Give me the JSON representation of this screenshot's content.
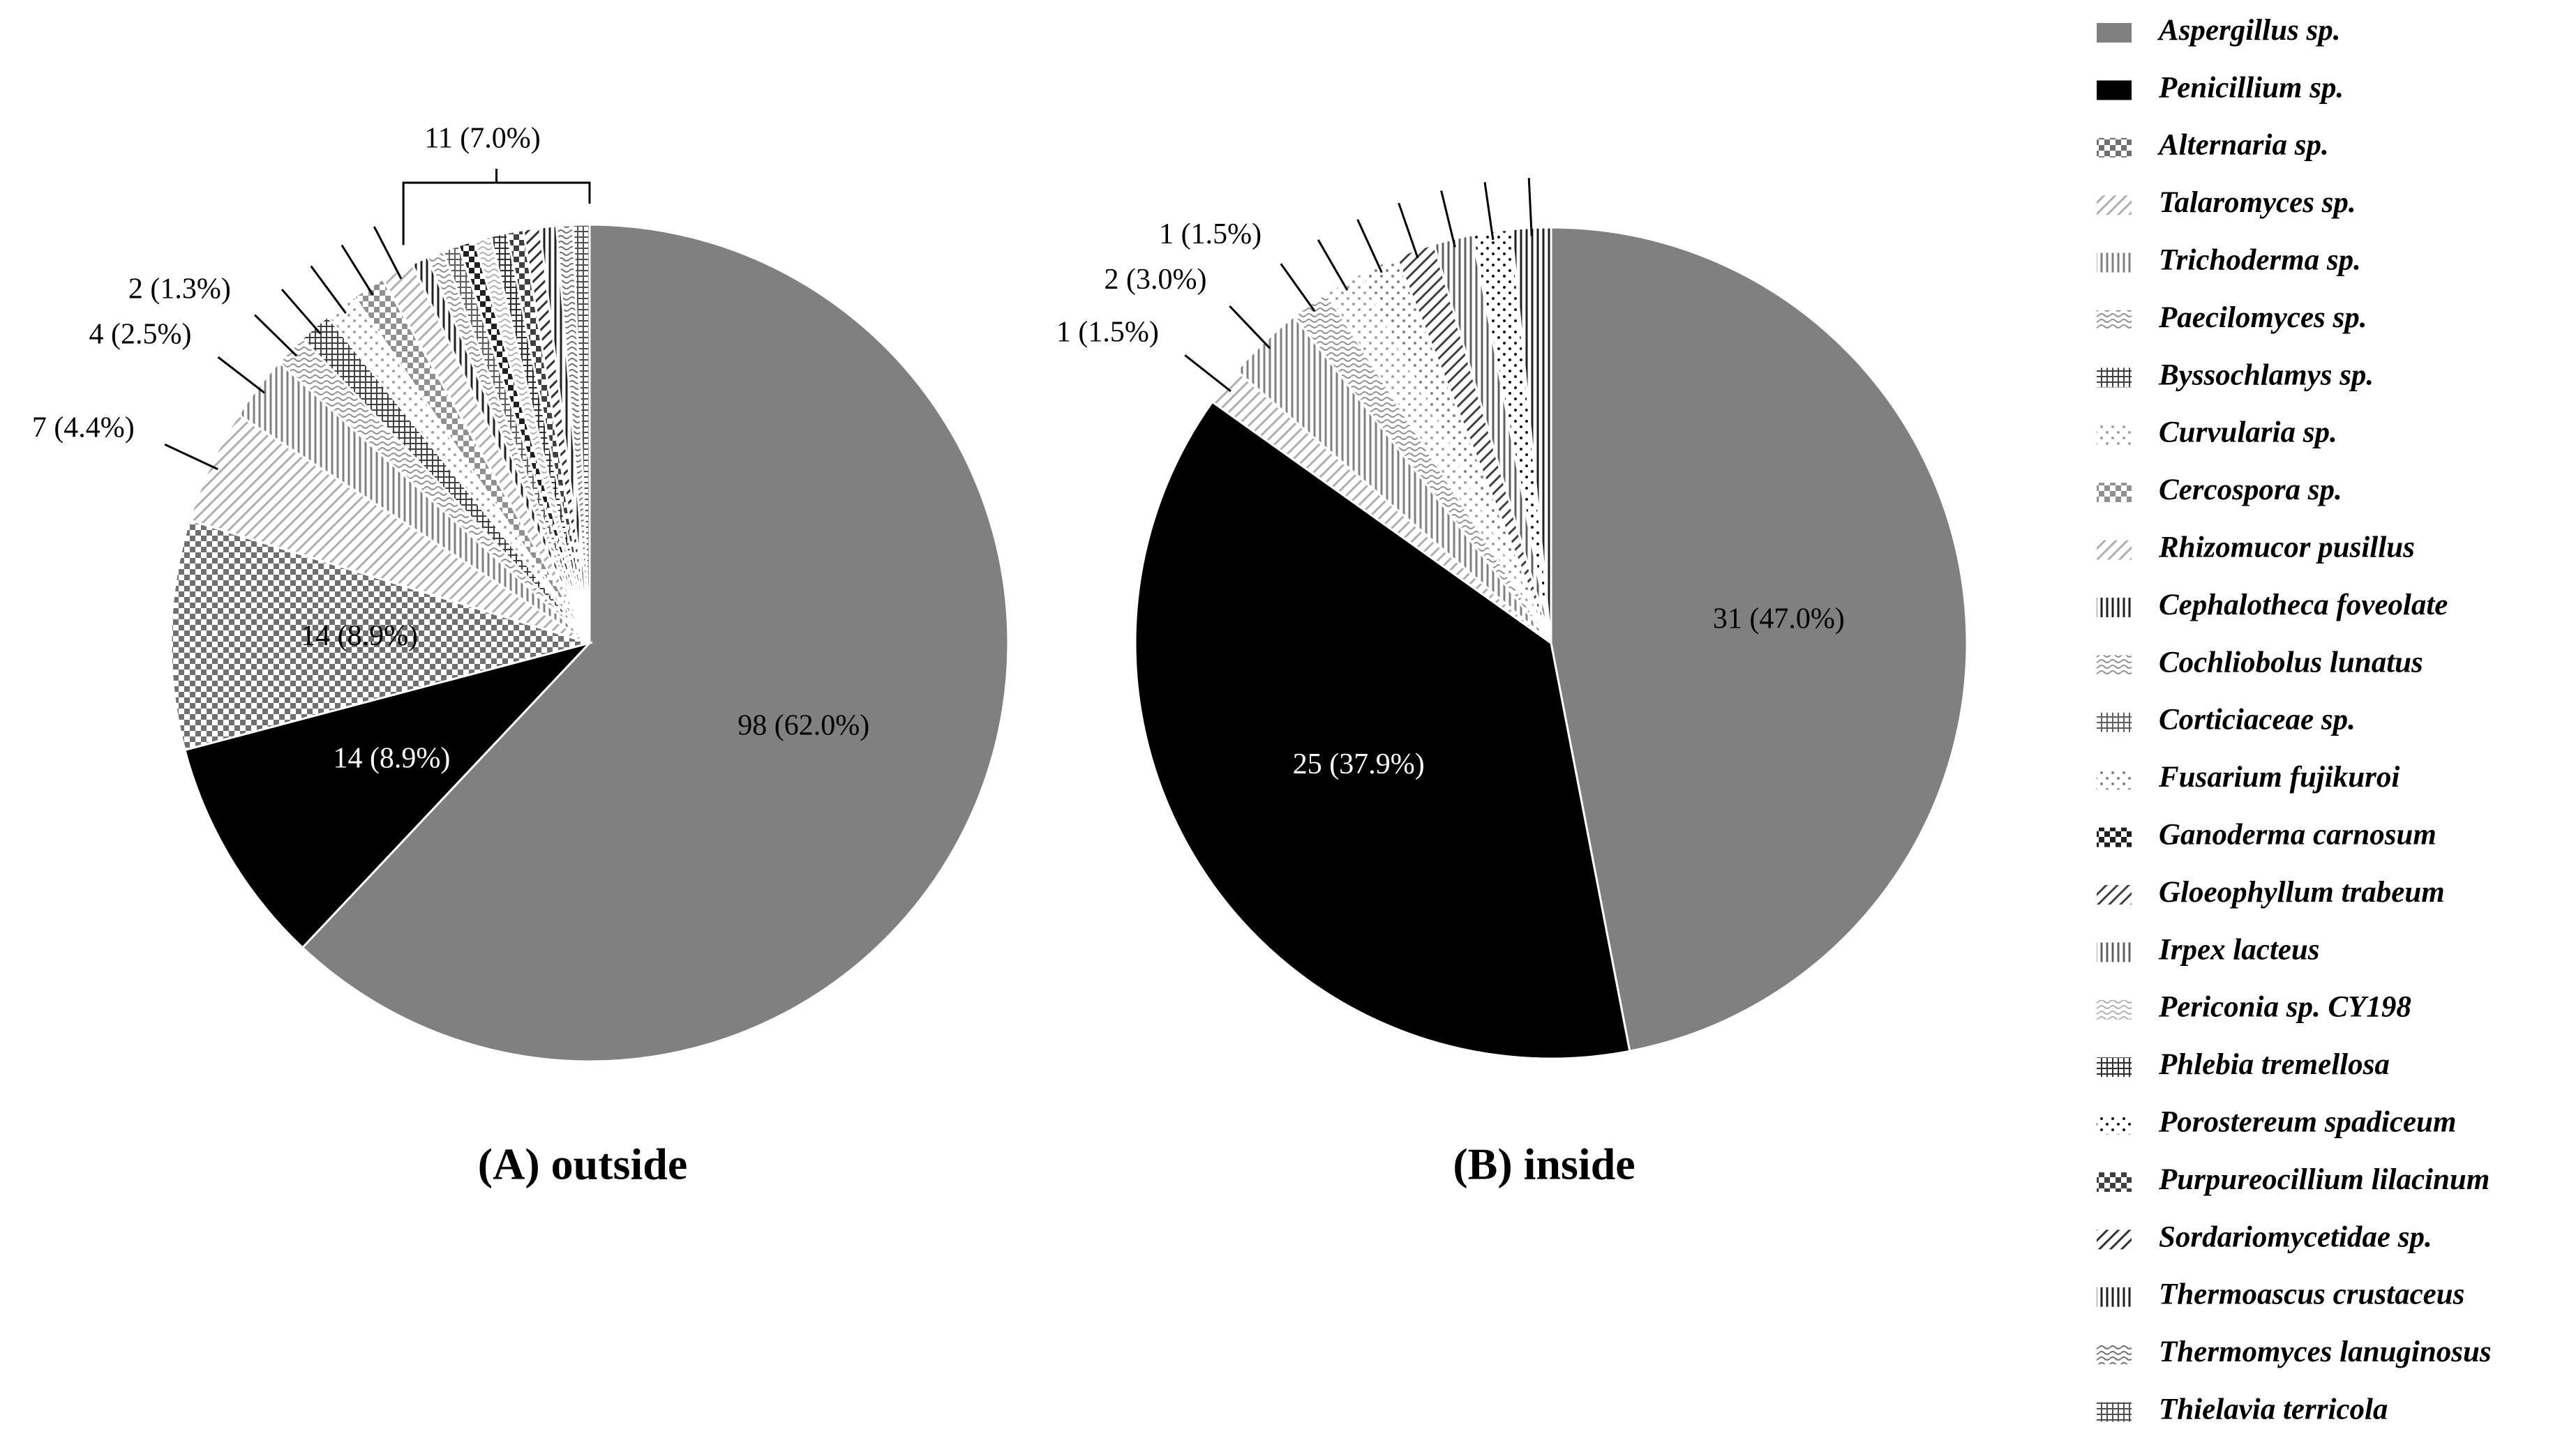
{
  "chart_data": [
    {
      "type": "pie",
      "title": "(A) outside",
      "values": [
        98,
        14,
        14,
        7,
        4,
        2,
        2,
        2,
        2,
        2,
        1,
        1,
        1,
        0,
        1,
        0,
        0,
        1,
        1,
        0,
        1,
        1,
        1,
        1,
        1
      ],
      "value_labels": [
        "98 (62.0%)",
        "14 (8.9%)",
        "14 (8.9%)",
        "7 (4.4%)",
        "4 (2.5%)",
        "2 (1.3%)",
        null,
        null,
        null,
        null,
        null,
        null,
        null,
        null,
        null,
        null,
        null,
        null,
        null,
        null,
        null,
        null,
        null,
        null,
        null
      ],
      "annotations": [
        "11 (7.0%)"
      ]
    },
    {
      "type": "pie",
      "title": "(B) inside",
      "values": [
        31,
        25,
        0,
        1,
        2,
        1,
        0,
        1,
        0,
        0,
        0,
        0,
        0,
        1,
        0,
        1,
        1,
        0,
        0,
        1,
        0,
        0,
        1,
        0,
        0
      ],
      "value_labels": [
        "31 (47.0%)",
        "25 (37.9%)",
        null,
        "1 (1.5%)",
        "2 (3.0%)",
        "1 (1.5%)",
        null,
        null,
        null,
        null,
        null,
        null,
        null,
        null,
        null,
        null,
        null,
        null,
        null,
        null,
        null,
        null,
        null,
        null,
        null
      ]
    }
  ],
  "legend": {
    "names": [
      "Aspergillus sp.",
      "Penicillium sp.",
      "Alternaria sp.",
      "Talaromyces sp.",
      "Trichoderma sp.",
      "Paecilomyces sp.",
      "Byssochlamys sp.",
      "Curvularia sp.",
      "Cercospora sp.",
      "Rhizomucor pusillus",
      "Cephalotheca foveolate",
      "Cochliobolus lunatus",
      "Corticiaceae sp.",
      "Fusarium fujikuroi",
      "Ganoderma carnosum",
      "Gloeophyllum trabeum",
      "Irpex lacteus",
      "Periconia sp. CY198",
      "Phlebia tremellosa",
      "Porostereum spadiceum",
      "Purpureocillium lilacinum",
      "Sordariomycetidae sp.",
      "Thermoascus crustaceus",
      "Thermomyces lanuginosus",
      "Thielavia terricola"
    ],
    "colors": [
      "#808080",
      "#000000",
      "#707070",
      "#b0b0b0",
      "#808080",
      "#909090",
      "#404040",
      "#a0a0a0",
      "#909090",
      "#b0b0b0",
      "#202020",
      "#909090",
      "#606060",
      "#808080",
      "#202020",
      "#404040",
      "#606060",
      "#b0b0b0",
      "#303030",
      "#101010",
      "#404040",
      "#303030",
      "#202020",
      "#707070",
      "#505050"
    ]
  }
}
